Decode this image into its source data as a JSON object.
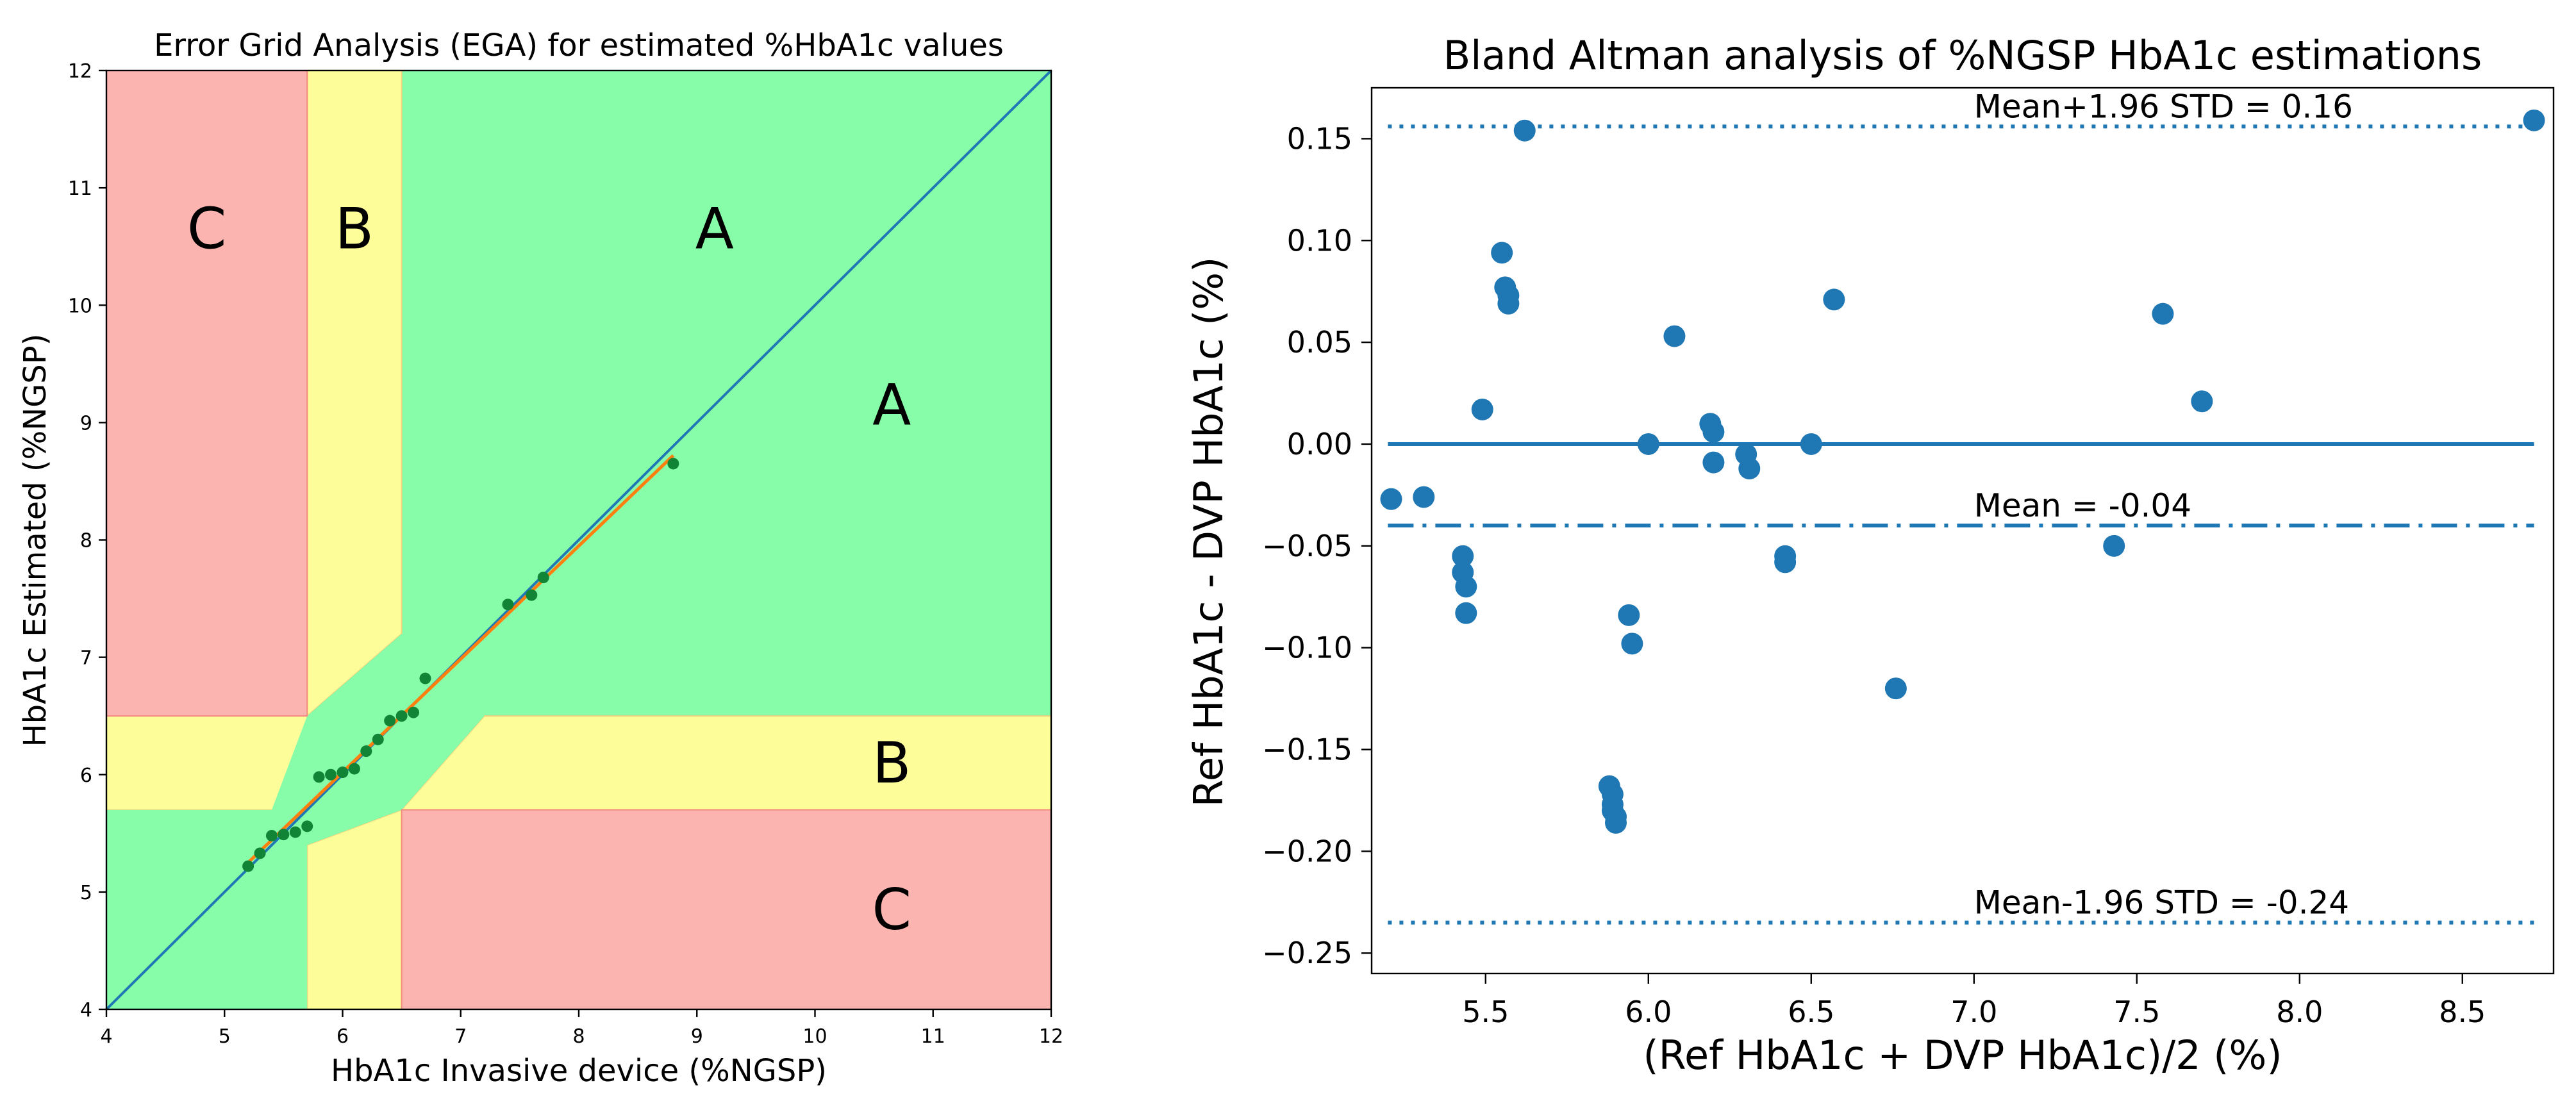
{
  "chart_data": [
    {
      "type": "scatter",
      "title": "Error Grid Analysis (EGA) for estimated %HbA1c values",
      "xlabel": "HbA1c Invasive device (%NGSP)",
      "ylabel": "HbA1c Estimated (%NGSP)",
      "xlim": [
        4,
        12
      ],
      "ylim": [
        4,
        12
      ],
      "xticks": [
        "4",
        "5",
        "6",
        "7",
        "8",
        "9",
        "10",
        "11",
        "12"
      ],
      "yticks": [
        "4",
        "5",
        "6",
        "7",
        "8",
        "9",
        "10",
        "11",
        "12"
      ],
      "grid": false,
      "zone_colors": {
        "A": "#87fdaa",
        "B": "#fdfd9a",
        "C": "#fcb4b1"
      },
      "zone_labels": [
        {
          "text": "C",
          "x": 4.85,
          "y": 10.65
        },
        {
          "text": "B",
          "x": 6.1,
          "y": 10.65
        },
        {
          "text": "A",
          "x": 9.15,
          "y": 10.65
        },
        {
          "text": "A",
          "x": 10.65,
          "y": 9.15
        },
        {
          "text": "B",
          "x": 10.65,
          "y": 6.1
        },
        {
          "text": "C",
          "x": 10.65,
          "y": 4.85
        }
      ],
      "points": [
        [
          5.2,
          5.22
        ],
        [
          5.3,
          5.33
        ],
        [
          5.4,
          5.48
        ],
        [
          5.5,
          5.49
        ],
        [
          5.6,
          5.51
        ],
        [
          5.7,
          5.56
        ],
        [
          5.8,
          5.98
        ],
        [
          5.9,
          6.0
        ],
        [
          6.0,
          6.02
        ],
        [
          6.1,
          6.05
        ],
        [
          6.2,
          6.2
        ],
        [
          6.3,
          6.3
        ],
        [
          6.4,
          6.46
        ],
        [
          6.5,
          6.5
        ],
        [
          6.6,
          6.53
        ],
        [
          6.7,
          6.82
        ],
        [
          7.4,
          7.45
        ],
        [
          7.6,
          7.53
        ],
        [
          7.7,
          7.68
        ],
        [
          8.8,
          8.65
        ]
      ],
      "identity_line": [
        [
          4,
          4
        ],
        [
          12,
          12
        ]
      ],
      "fit_line": [
        [
          5.2,
          5.25
        ],
        [
          8.8,
          8.72
        ]
      ]
    },
    {
      "type": "scatter",
      "title": "Bland Altman analysis of %NGSP HbA1c estimations",
      "xlabel": "(Ref HbA1c + DVP HbA1c)/2 (%)",
      "ylabel": "Ref HbA1c - DVP HbA1c (%)",
      "xlim": [
        5.15,
        8.78
      ],
      "ylim": [
        -0.26,
        0.175
      ],
      "xticks": [
        5.5,
        6.0,
        6.5,
        7.0,
        7.5,
        8.0,
        8.5
      ],
      "xtick_labels": [
        "5.5",
        "6.0",
        "6.5",
        "7.0",
        "7.5",
        "8.0",
        "8.5"
      ],
      "yticks": [
        0.15,
        0.1,
        0.05,
        0.0,
        -0.05,
        -0.1,
        -0.15,
        -0.2,
        -0.25
      ],
      "ytick_labels": [
        "0.15",
        "0.10",
        "0.05",
        "0.00",
        "−0.05",
        "−0.10",
        "−0.15",
        "−0.20",
        "−0.25"
      ],
      "grid": false,
      "reference_lines": [
        {
          "y": 0.156,
          "style": "dotted",
          "label": "Mean+1.96 STD = 0.16"
        },
        {
          "y": -0.04,
          "style": "dashdot",
          "label": "Mean = -0.04"
        },
        {
          "y": -0.235,
          "style": "dotted",
          "label": "Mean-1.96 STD = -0.24"
        },
        {
          "y": 0.0,
          "style": "solid",
          "label": ""
        }
      ],
      "line_x_range": [
        5.2,
        8.72
      ],
      "label_x": 7.0,
      "points": [
        [
          5.21,
          -0.027
        ],
        [
          5.31,
          -0.026
        ],
        [
          5.43,
          -0.055
        ],
        [
          5.43,
          -0.063
        ],
        [
          5.44,
          -0.07
        ],
        [
          5.44,
          -0.083
        ],
        [
          5.49,
          0.017
        ],
        [
          5.55,
          0.094
        ],
        [
          5.56,
          0.077
        ],
        [
          5.57,
          0.073
        ],
        [
          5.57,
          0.069
        ],
        [
          5.62,
          0.154
        ],
        [
          5.88,
          -0.168
        ],
        [
          5.89,
          -0.172
        ],
        [
          5.89,
          -0.177
        ],
        [
          5.89,
          -0.18
        ],
        [
          5.9,
          -0.183
        ],
        [
          5.9,
          -0.186
        ],
        [
          5.94,
          -0.084
        ],
        [
          5.95,
          -0.098
        ],
        [
          6.0,
          0.0
        ],
        [
          6.08,
          0.053
        ],
        [
          6.19,
          0.01
        ],
        [
          6.2,
          0.006
        ],
        [
          6.2,
          -0.009
        ],
        [
          6.3,
          -0.005
        ],
        [
          6.31,
          -0.012
        ],
        [
          6.42,
          -0.055
        ],
        [
          6.42,
          -0.058
        ],
        [
          6.5,
          0.0
        ],
        [
          6.57,
          0.071
        ],
        [
          6.76,
          -0.12
        ],
        [
          7.43,
          -0.05
        ],
        [
          7.58,
          0.064
        ],
        [
          7.7,
          0.021
        ],
        [
          8.72,
          0.159
        ]
      ]
    }
  ]
}
